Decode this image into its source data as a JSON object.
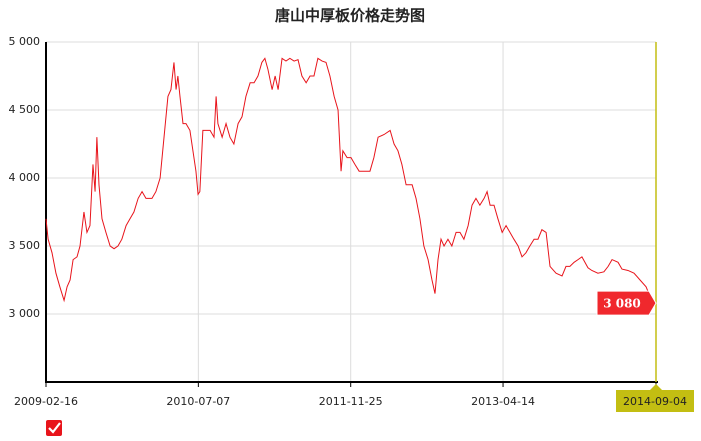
{
  "chart_data": {
    "type": "line",
    "title": "唐山中厚板价格走势图",
    "color": "#e8141b",
    "grid": true,
    "x": [
      "2009-02-16",
      "2009-02-23",
      "2009-03-08",
      "2009-03-21",
      "2009-04-03",
      "2009-04-17",
      "2009-04-27",
      "2009-05-07",
      "2009-05-17",
      "2009-05-30",
      "2009-06-09",
      "2009-06-22",
      "2009-07-02",
      "2009-07-12",
      "2009-07-22",
      "2009-07-29",
      "2009-08-04",
      "2009-08-11",
      "2009-08-21",
      "2009-09-03",
      "2009-09-17",
      "2009-09-30",
      "2009-10-13",
      "2009-10-26",
      "2009-11-09",
      "2009-11-22",
      "2009-12-05",
      "2009-12-19",
      "2010-01-01",
      "2010-01-14",
      "2010-02-03",
      "2010-02-16",
      "2010-03-02",
      "2010-03-15",
      "2010-03-28",
      "2010-04-07",
      "2010-04-17",
      "2010-04-24",
      "2010-04-30",
      "2010-05-07",
      "2010-05-17",
      "2010-05-27",
      "2010-06-09",
      "2010-06-19",
      "2010-06-29",
      "2010-07-06",
      "2010-07-12",
      "2010-07-22",
      "2010-08-01",
      "2010-08-15",
      "2010-08-28",
      "2010-09-04",
      "2010-09-10",
      "2010-09-24",
      "2010-10-07",
      "2010-10-20",
      "2010-11-02",
      "2010-11-16",
      "2010-11-29",
      "2010-12-12",
      "2010-12-26",
      "2011-01-08",
      "2011-01-21",
      "2011-02-03",
      "2011-02-13",
      "2011-02-23",
      "2011-03-09",
      "2011-03-19",
      "2011-03-29",
      "2011-04-11",
      "2011-04-24",
      "2011-05-07",
      "2011-05-21",
      "2011-06-03",
      "2011-06-16",
      "2011-06-30",
      "2011-07-13",
      "2011-07-26",
      "2011-08-08",
      "2011-08-22",
      "2011-09-04",
      "2011-09-17",
      "2011-10-01",
      "2011-10-14",
      "2011-10-24",
      "2011-10-30",
      "2011-11-13",
      "2011-11-26",
      "2011-12-09",
      "2011-12-23",
      "2012-01-08",
      "2012-01-28",
      "2012-02-10",
      "2012-02-24",
      "2012-03-15",
      "2012-04-04",
      "2012-04-17",
      "2012-04-30",
      "2012-05-13",
      "2012-05-27",
      "2012-06-16",
      "2012-06-29",
      "2012-07-12",
      "2012-07-25",
      "2012-08-08",
      "2012-08-21",
      "2012-08-31",
      "2012-09-10",
      "2012-09-20",
      "2012-09-30",
      "2012-10-13",
      "2012-10-26",
      "2012-11-09",
      "2012-11-22",
      "2012-12-05",
      "2012-12-19",
      "2013-01-01",
      "2013-01-14",
      "2013-01-27",
      "2013-02-10",
      "2013-02-20",
      "2013-03-02",
      "2013-03-15",
      "2013-03-28",
      "2013-04-11",
      "2013-04-24",
      "2013-05-07",
      "2013-05-20",
      "2013-06-03",
      "2013-06-16",
      "2013-06-29",
      "2013-07-12",
      "2013-07-26",
      "2013-08-08",
      "2013-08-21",
      "2013-09-04",
      "2013-09-17",
      "2013-10-07",
      "2013-10-27",
      "2013-11-09",
      "2013-11-22",
      "2013-12-06",
      "2013-12-19",
      "2014-01-01",
      "2014-01-21",
      "2014-02-03",
      "2014-02-23",
      "2014-03-15",
      "2014-03-29",
      "2014-04-11",
      "2014-05-01",
      "2014-05-14",
      "2014-06-03",
      "2014-06-23",
      "2014-07-13",
      "2014-08-02",
      "2014-08-15",
      "2014-09-04"
    ],
    "values": [
      3700,
      3550,
      3450,
      3300,
      3200,
      3100,
      3200,
      3250,
      3400,
      3420,
      3500,
      3750,
      3600,
      3650,
      4100,
      3900,
      4300,
      3950,
      3700,
      3600,
      3500,
      3480,
      3500,
      3550,
      3650,
      3700,
      3750,
      3850,
      3900,
      3850,
      3850,
      3900,
      4000,
      4300,
      4600,
      4650,
      4850,
      4650,
      4750,
      4600,
      4400,
      4400,
      4350,
      4200,
      4050,
      3880,
      3900,
      4350,
      4350,
      4350,
      4300,
      4600,
      4400,
      4300,
      4400,
      4300,
      4250,
      4400,
      4450,
      4600,
      4700,
      4700,
      4750,
      4850,
      4880,
      4800,
      4650,
      4750,
      4650,
      4880,
      4860,
      4880,
      4860,
      4870,
      4750,
      4700,
      4750,
      4750,
      4880,
      4860,
      4850,
      4750,
      4600,
      4500,
      4050,
      4200,
      4150,
      4150,
      4100,
      4050,
      4050,
      4050,
      4150,
      4300,
      4320,
      4350,
      4250,
      4200,
      4100,
      3950,
      3950,
      3850,
      3700,
      3500,
      3400,
      3250,
      3150,
      3400,
      3550,
      3500,
      3550,
      3500,
      3600,
      3600,
      3550,
      3650,
      3800,
      3850,
      3800,
      3850,
      3900,
      3800,
      3800,
      3700,
      3600,
      3650,
      3600,
      3550,
      3500,
      3420,
      3450,
      3500,
      3550,
      3550,
      3620,
      3600,
      3350,
      3300,
      3280,
      3350,
      3350,
      3380,
      3400,
      3420,
      3340,
      3320,
      3300,
      3310,
      3350,
      3400,
      3380,
      3330,
      3320,
      3300,
      3250,
      3200,
      3130,
      3080
    ],
    "xlim": [
      "2009-02-16",
      "2014-09-04"
    ],
    "xticks": [
      "2009-02-16",
      "2010-07-07",
      "2011-11-25",
      "2013-04-14",
      "2014-09-04"
    ],
    "ylim": [
      2500,
      5000
    ],
    "yticks": [
      {
        "value": 3000,
        "label": "3 000"
      },
      {
        "value": 3500,
        "label": "3 500"
      },
      {
        "value": 4000,
        "label": "4 000"
      },
      {
        "value": 4500,
        "label": "4 500"
      },
      {
        "value": 5000,
        "label": "5 000"
      }
    ],
    "annotations": [
      {
        "x": "2014-09-04",
        "value": 3080,
        "label": "3 080"
      }
    ]
  }
}
